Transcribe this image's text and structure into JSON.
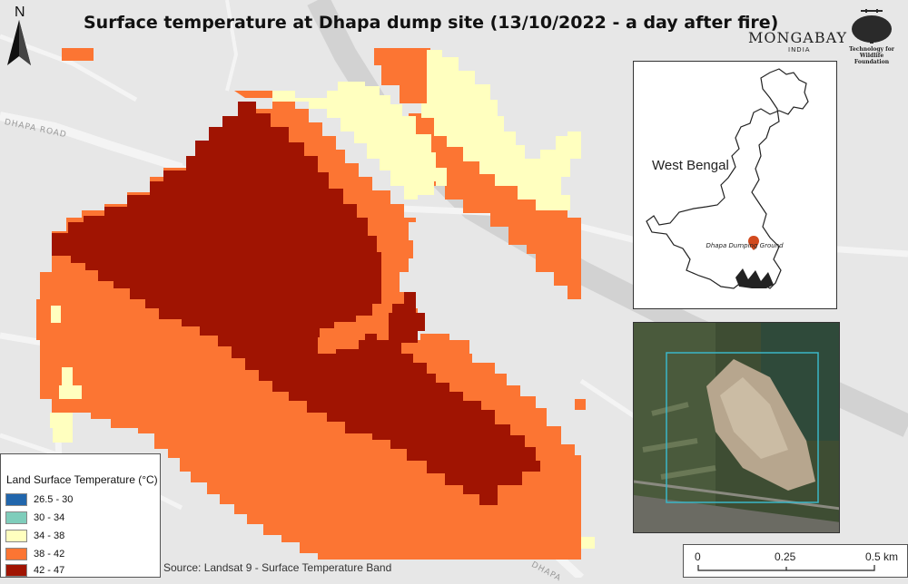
{
  "title": "Surface temperature at Dhapa dump site (13/10/2022 - a day after fire)",
  "north_arrow": {
    "label": "N"
  },
  "logos": {
    "mongabay": "MONGABAY",
    "mongabay_sub": "INDIA",
    "twf_line1": "Technology for Wildlife",
    "twf_line2": "Foundation"
  },
  "road_labels": [
    "DHAPA ROAD",
    "DHAPA"
  ],
  "inset": {
    "state_label": "West Bengal",
    "site_label": "Dhapa Dumping Ground",
    "marker_color": "#d24a1e"
  },
  "legend": {
    "title": "Land Surface Temperature (°C)",
    "items": [
      {
        "label": "26.5 - 30",
        "color": "#2166ac"
      },
      {
        "label": "30 - 34",
        "color": "#7fcdbb"
      },
      {
        "label": "34 - 38",
        "color": "#ffffbf"
      },
      {
        "label": "38 - 42",
        "color": "#fc7533"
      },
      {
        "label": "42 - 47",
        "color": "#a01402"
      }
    ]
  },
  "source": "Source: Landsat 9 - Surface Temperature Band",
  "scale_bar": {
    "labels": [
      "0",
      "0.25",
      "0.5 km"
    ]
  }
}
